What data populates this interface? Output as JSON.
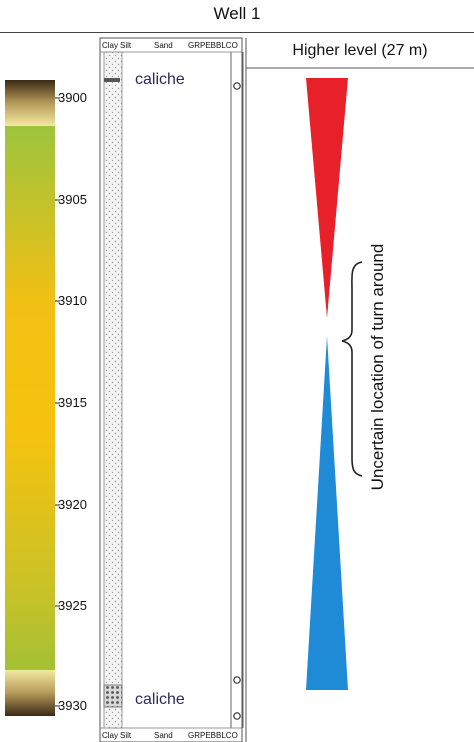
{
  "header": {
    "title": "Well 1"
  },
  "right_panel": {
    "title": "Higher level (27 m)",
    "annotation": "Uncertain location of turn around",
    "upper_color": "#e8202a",
    "lower_color": "#1f8bd6"
  },
  "depth_axis": {
    "ticks": [
      "3900",
      "3905",
      "3910",
      "3915",
      "3920",
      "3925",
      "3930"
    ]
  },
  "grain_scale": {
    "top": [
      "Clay",
      "Silt",
      "Sand",
      "GRPEBBLCO"
    ],
    "bottom": [
      "Clay",
      "Silt",
      "Sand",
      "GRPEBBLCO"
    ]
  },
  "lithology": {
    "top_label": "caliche",
    "bottom_label": "caliche"
  }
}
